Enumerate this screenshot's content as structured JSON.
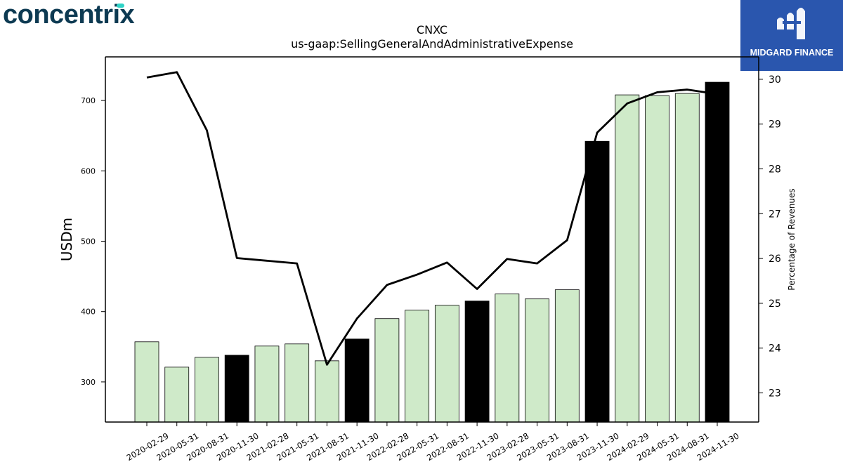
{
  "brand": {
    "name": "concentrix"
  },
  "partner": {
    "name": "MIDGARD FINANCE",
    "bg_color": "#2a56ae"
  },
  "chart_data": {
    "type": "bar",
    "title": "CNXC",
    "subtitle": "us-gaap:SellingGeneralAndAdministrativeExpense",
    "ylabel": "USDm",
    "y2label": "Percentage of Revenues",
    "ylim": [
      243,
      762
    ],
    "y2lim": [
      22.35,
      30.5
    ],
    "yticks": [
      300,
      400,
      500,
      600,
      700
    ],
    "y2ticks": [
      23,
      24,
      25,
      26,
      27,
      28,
      29,
      30
    ],
    "categories": [
      "2020-02-29",
      "2020-05-31",
      "2020-08-31",
      "2020-11-30",
      "2021-02-28",
      "2021-05-31",
      "2021-08-31",
      "2021-11-30",
      "2022-02-28",
      "2022-05-31",
      "2022-08-31",
      "2022-11-30",
      "2023-02-28",
      "2023-05-31",
      "2023-08-31",
      "2023-11-30",
      "2024-02-29",
      "2024-05-31",
      "2024-08-31",
      "2024-11-30"
    ],
    "series": [
      {
        "type": "bar",
        "values": [
          357,
          321,
          335,
          338,
          351,
          354,
          330,
          361,
          390,
          402,
          409,
          415,
          425,
          418,
          431,
          642,
          708,
          707,
          710,
          726
        ]
      },
      {
        "type": "line",
        "axis": "right",
        "values": [
          30.04,
          30.16,
          28.86,
          26.01,
          25.95,
          25.89,
          23.63,
          24.66,
          25.41,
          25.64,
          25.91,
          25.32,
          25.99,
          25.89,
          26.41,
          28.81,
          29.46,
          29.71,
          29.77,
          29.67
        ]
      }
    ],
    "annual_periods": [
      "2020-11-30",
      "2021-11-30",
      "2022-11-30",
      "2023-11-30",
      "2024-11-30"
    ],
    "colors": {
      "quarter_bar": "#cfeac9",
      "annual_bar": "#000000",
      "line": "#000000"
    },
    "grid": false
  }
}
